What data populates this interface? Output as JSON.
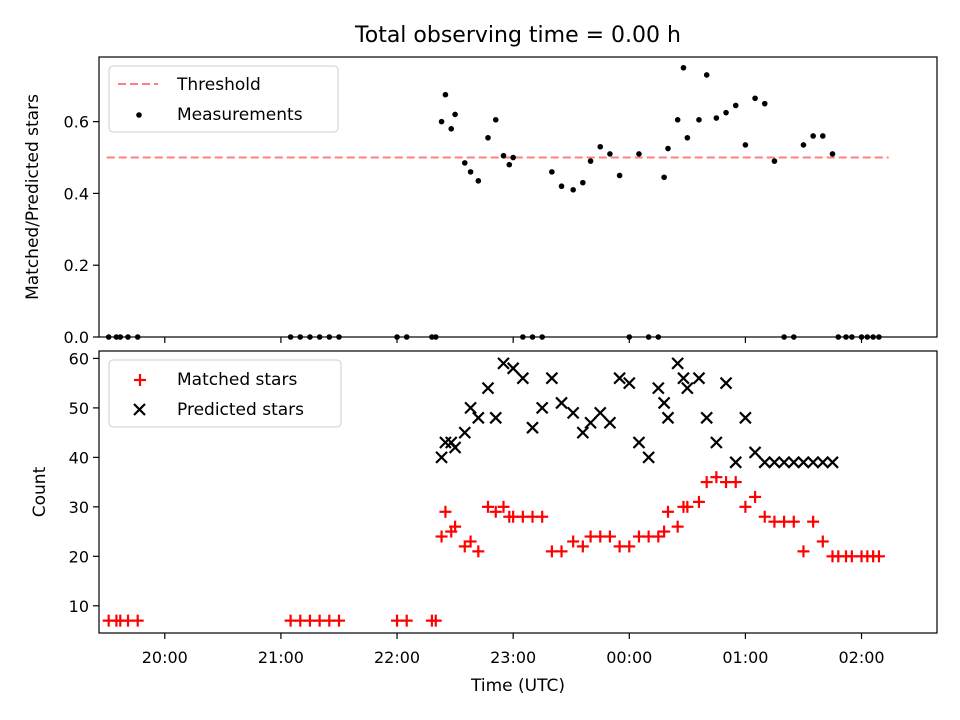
{
  "chart_data": [
    {
      "type": "scatter",
      "title": "Total observing time = 0.00 h",
      "xlabel": "",
      "ylabel": "Matched/Predicted stars",
      "ylim": [
        0,
        0.78
      ],
      "yticks": [
        "0.0",
        "0.2",
        "0.4",
        "0.6"
      ],
      "ytick_values": [
        0.0,
        0.2,
        0.4,
        0.6
      ],
      "xlim": [
        "19:26",
        "02:39"
      ],
      "legend_position": "upper-left",
      "legend": [
        "Threshold",
        "Measurements"
      ],
      "threshold": {
        "name": "Threshold",
        "value": 0.5,
        "x_start": "19:30",
        "x_end": "02:14",
        "color": "#ff7f7f"
      },
      "series": [
        {
          "name": "Measurements",
          "color": "#000000",
          "x": [
            "19:31",
            "19:35",
            "19:37",
            "19:41",
            "19:46",
            "21:05",
            "21:10",
            "21:15",
            "21:20",
            "21:25",
            "21:30",
            "22:00",
            "22:05",
            "22:18",
            "22:20",
            "22:23",
            "22:25",
            "22:28",
            "22:30",
            "22:35",
            "22:38",
            "22:42",
            "22:47",
            "22:51",
            "22:55",
            "22:58",
            "23:00",
            "23:05",
            "23:10",
            "23:15",
            "23:20",
            "23:25",
            "23:31",
            "23:36",
            "23:40",
            "23:45",
            "23:50",
            "23:55",
            "00:00",
            "00:05",
            "00:10",
            "00:15",
            "00:18",
            "00:20",
            "00:25",
            "00:28",
            "00:30",
            "00:36",
            "00:40",
            "00:45",
            "00:50",
            "00:55",
            "01:00",
            "01:05",
            "01:10",
            "01:15",
            "01:20",
            "01:25",
            "01:30",
            "01:35",
            "01:40",
            "01:45",
            "01:48",
            "01:52",
            "01:55",
            "02:00",
            "02:03",
            "02:06",
            "02:09"
          ],
          "y": [
            0,
            0,
            0,
            0,
            0,
            0,
            0,
            0,
            0,
            0,
            0,
            0,
            0,
            0,
            0,
            0.6,
            0.675,
            0.58,
            0.62,
            0.485,
            0.46,
            0.435,
            0.555,
            0.605,
            0.505,
            0.48,
            0.5,
            0,
            0,
            0,
            0.46,
            0.42,
            0.41,
            0.43,
            0.49,
            0.53,
            0.51,
            0.45,
            0,
            0.51,
            0,
            0,
            0.445,
            0.525,
            0.605,
            0.75,
            0.555,
            0.605,
            0.73,
            0.61,
            0.625,
            0.645,
            0.535,
            0.665,
            0.65,
            0.49,
            0,
            0,
            0.535,
            0.56,
            0.56,
            0.51,
            0,
            0,
            0,
            0,
            0,
            0,
            0
          ]
        }
      ]
    },
    {
      "type": "scatter",
      "title": "",
      "xlabel": "Time (UTC)",
      "ylabel": "Count",
      "ylim": [
        4.5,
        61.5
      ],
      "yticks": [
        "10",
        "20",
        "30",
        "40",
        "50",
        "60"
      ],
      "ytick_values": [
        10,
        20,
        30,
        40,
        50,
        60
      ],
      "xticks": [
        "20:00",
        "21:00",
        "22:00",
        "23:00",
        "00:00",
        "01:00",
        "02:00"
      ],
      "xlim": [
        "19:26",
        "02:39"
      ],
      "legend_position": "upper-left",
      "legend": [
        "Matched stars",
        "Predicted stars"
      ],
      "series": [
        {
          "name": "Matched stars",
          "marker": "plus",
          "color": "#ff0000",
          "x": [
            "19:31",
            "19:35",
            "19:37",
            "19:41",
            "19:46",
            "21:05",
            "21:10",
            "21:15",
            "21:20",
            "21:25",
            "21:30",
            "22:00",
            "22:05",
            "22:18",
            "22:20",
            "22:23",
            "22:25",
            "22:28",
            "22:30",
            "22:35",
            "22:38",
            "22:42",
            "22:47",
            "22:51",
            "22:55",
            "22:58",
            "23:00",
            "23:05",
            "23:10",
            "23:15",
            "23:20",
            "23:25",
            "23:31",
            "23:36",
            "23:40",
            "23:45",
            "23:50",
            "23:55",
            "00:00",
            "00:05",
            "00:10",
            "00:15",
            "00:18",
            "00:20",
            "00:25",
            "00:28",
            "00:30",
            "00:36",
            "00:40",
            "00:45",
            "00:50",
            "00:55",
            "01:00",
            "01:05",
            "01:10",
            "01:15",
            "01:20",
            "01:25",
            "01:30",
            "01:35",
            "01:40",
            "01:45",
            "01:48",
            "01:52",
            "01:55",
            "02:00",
            "02:03",
            "02:06",
            "02:09"
          ],
          "y": [
            7,
            7,
            7,
            7,
            7,
            7,
            7,
            7,
            7,
            7,
            7,
            7,
            7,
            7,
            7,
            24,
            29,
            25,
            26,
            22,
            23,
            21,
            30,
            29,
            30,
            28,
            28,
            28,
            28,
            28,
            21,
            21,
            23,
            22,
            24,
            24,
            24,
            22,
            22,
            24,
            24,
            24,
            25,
            29,
            26,
            30,
            30,
            31,
            35,
            36,
            35,
            35,
            30,
            32,
            28,
            27,
            27,
            27,
            21,
            27,
            23,
            20,
            20,
            20,
            20,
            20,
            20,
            20,
            20
          ]
        },
        {
          "name": "Predicted stars",
          "marker": "x",
          "color": "#000000",
          "x": [
            "22:23",
            "22:25",
            "22:28",
            "22:30",
            "22:35",
            "22:38",
            "22:42",
            "22:47",
            "22:51",
            "22:55",
            "23:00",
            "23:05",
            "23:10",
            "23:15",
            "23:20",
            "23:25",
            "23:31",
            "23:36",
            "23:40",
            "23:45",
            "23:50",
            "23:55",
            "00:00",
            "00:05",
            "00:10",
            "00:15",
            "00:18",
            "00:20",
            "00:25",
            "00:28",
            "00:30",
            "00:36",
            "00:40",
            "00:45",
            "00:50",
            "00:55",
            "01:00",
            "01:05",
            "01:10",
            "01:15",
            "01:20",
            "01:25",
            "01:30",
            "01:35",
            "01:40",
            "01:45"
          ],
          "y": [
            40,
            43,
            43,
            42,
            45,
            50,
            48,
            54,
            48,
            59,
            58,
            56,
            46,
            50,
            56,
            51,
            49,
            45,
            47,
            49,
            47,
            56,
            55,
            43,
            40,
            54,
            51,
            48,
            59,
            56,
            54,
            56,
            48,
            43,
            55,
            39,
            48,
            41,
            39,
            39,
            39,
            39,
            39,
            39,
            39,
            39
          ]
        }
      ]
    }
  ]
}
